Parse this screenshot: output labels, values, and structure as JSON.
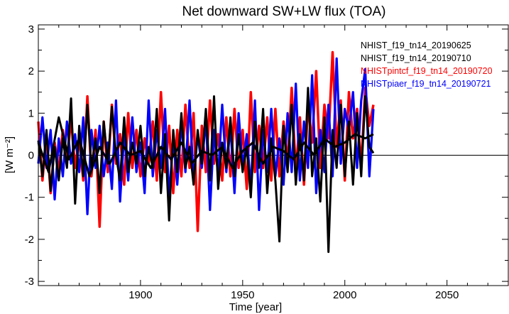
{
  "chart_data": {
    "type": "line",
    "title": "Net downward SW+LW flux (TOA)",
    "xlabel": "Time [year]",
    "ylabel": "[W m⁻²]",
    "xlim": [
      1850,
      2080
    ],
    "ylim": [
      -3.1,
      3.1
    ],
    "xticks": [
      1900,
      1950,
      2000,
      2050
    ],
    "yticks": [
      -3,
      -2,
      -1,
      0,
      1,
      2,
      3
    ],
    "zero_line": true,
    "legend_position": "top-right",
    "series": [
      {
        "name": "NHIST_f19_tn14_20190625",
        "color": "#000000",
        "x": [
          1850,
          1855,
          1860,
          1865,
          1870,
          1875,
          1880,
          1885,
          1890,
          1895,
          1900,
          1905,
          1910,
          1915,
          1920,
          1925,
          1930,
          1935,
          1940,
          1945,
          1950,
          1955,
          1960,
          1965,
          1970,
          1975,
          1980,
          1985,
          1990,
          1995,
          2000,
          2005,
          2010,
          2014
        ],
        "values": [
          0.3,
          -0.4,
          0.9,
          -0.1,
          0.4,
          -0.5,
          0.2,
          -0.2,
          0.3,
          0.0,
          0.1,
          -0.3,
          0.2,
          -0.1,
          0.3,
          -0.2,
          0.1,
          0.0,
          0.2,
          -0.3,
          0.1,
          0.3,
          -0.2,
          0.2,
          0.1,
          -0.1,
          0.3,
          0.0,
          0.4,
          0.2,
          0.3,
          0.5,
          0.4,
          0.5
        ]
      },
      {
        "name": "NHIST_f19_tn14_20190710",
        "color": "#000000",
        "x": [
          1850,
          1852,
          1854,
          1856,
          1858,
          1860,
          1862,
          1864,
          1866,
          1868,
          1870,
          1872,
          1874,
          1876,
          1878,
          1880,
          1882,
          1884,
          1886,
          1888,
          1890,
          1892,
          1894,
          1896,
          1898,
          1900,
          1902,
          1904,
          1906,
          1908,
          1910,
          1912,
          1914,
          1916,
          1918,
          1920,
          1922,
          1924,
          1926,
          1928,
          1930,
          1932,
          1934,
          1936,
          1938,
          1940,
          1942,
          1944,
          1946,
          1948,
          1950,
          1952,
          1954,
          1956,
          1958,
          1960,
          1962,
          1964,
          1966,
          1968,
          1970,
          1972,
          1974,
          1976,
          1978,
          1980,
          1982,
          1984,
          1986,
          1988,
          1990,
          1992,
          1994,
          1996,
          1998,
          2000,
          2002,
          2004,
          2006,
          2008,
          2010,
          2012,
          2014
        ],
        "values": [
          0.35,
          -0.5,
          0.6,
          -0.85,
          0.2,
          -0.6,
          0.4,
          -0.3,
          1.35,
          -1.15,
          0.7,
          -0.5,
          1.2,
          -0.3,
          0.4,
          -0.9,
          0.8,
          -0.2,
          1.15,
          0.0,
          -0.6,
          0.9,
          -0.4,
          0.3,
          -0.2,
          0.7,
          -0.5,
          0.2,
          -0.3,
          1.1,
          -0.9,
          0.5,
          -1.55,
          0.6,
          -0.4,
          1.0,
          -0.3,
          0.2,
          -0.7,
          0.6,
          -0.2,
          1.1,
          -0.6,
          1.4,
          -0.8,
          0.3,
          -0.3,
          0.9,
          -0.5,
          0.5,
          -0.4,
          0.2,
          -1.0,
          0.8,
          -0.3,
          1.1,
          -0.9,
          0.4,
          -0.6,
          -2.05,
          0.7,
          -0.4,
          1.2,
          -0.7,
          0.5,
          -0.6,
          1.6,
          -0.5,
          0.4,
          -1.1,
          0.9,
          -2.3,
          0.6,
          -0.3,
          1.2,
          -0.5,
          0.8,
          -0.7,
          1.0,
          -0.5,
          1.4,
          0.2,
          0.05
        ]
      },
      {
        "name": "NHISTpintcf_f19_tn14_20190720",
        "color": "#ff0000",
        "x": [
          1850,
          1852,
          1854,
          1856,
          1858,
          1860,
          1862,
          1864,
          1866,
          1868,
          1870,
          1872,
          1874,
          1876,
          1878,
          1880,
          1882,
          1884,
          1886,
          1888,
          1890,
          1892,
          1894,
          1896,
          1898,
          1900,
          1902,
          1904,
          1906,
          1908,
          1910,
          1912,
          1914,
          1916,
          1918,
          1920,
          1922,
          1924,
          1926,
          1928,
          1930,
          1932,
          1934,
          1936,
          1938,
          1940,
          1942,
          1944,
          1946,
          1948,
          1950,
          1952,
          1954,
          1956,
          1958,
          1960,
          1962,
          1964,
          1966,
          1968,
          1970,
          1972,
          1974,
          1976,
          1978,
          1980,
          1982,
          1984,
          1986,
          1988,
          1990,
          1992,
          1994,
          1996,
          1998,
          2000,
          2002,
          2004,
          2006,
          2008,
          2010,
          2012,
          2014
        ],
        "values": [
          0.8,
          -0.6,
          0.5,
          -0.9,
          0.3,
          -0.4,
          0.6,
          -0.2,
          0.9,
          -0.3,
          0.4,
          -0.6,
          1.4,
          -0.5,
          0.6,
          -1.7,
          0.8,
          -0.4,
          1.2,
          -0.2,
          0.5,
          -0.7,
          1.0,
          -0.3,
          0.6,
          -0.5,
          0.4,
          -0.2,
          0.8,
          -0.6,
          1.5,
          -0.4,
          0.7,
          -0.9,
          0.6,
          -0.5,
          1.2,
          -0.3,
          1.0,
          -1.8,
          0.7,
          -0.4,
          1.3,
          -0.2,
          0.5,
          -0.6,
          0.9,
          -0.5,
          1.1,
          -0.3,
          0.6,
          -0.8,
          1.5,
          -0.4,
          0.7,
          -0.3,
          0.9,
          -0.6,
          1.1,
          -0.5,
          0.8,
          -0.2,
          1.6,
          -0.4,
          0.9,
          -0.7,
          1.2,
          0.3,
          2.0,
          -0.3,
          1.2,
          0.4,
          2.45,
          0.2,
          1.3,
          -0.6,
          1.5,
          0.4,
          1.1,
          -0.3,
          1.6,
          0.7,
          1.2
        ]
      },
      {
        "name": "NHISTpiaer_f19_tn14_20190721",
        "color": "#0000ff",
        "x": [
          1850,
          1852,
          1854,
          1856,
          1858,
          1860,
          1862,
          1864,
          1866,
          1868,
          1870,
          1872,
          1874,
          1876,
          1878,
          1880,
          1882,
          1884,
          1886,
          1888,
          1890,
          1892,
          1894,
          1896,
          1898,
          1900,
          1902,
          1904,
          1906,
          1908,
          1910,
          1912,
          1914,
          1916,
          1918,
          1920,
          1922,
          1924,
          1926,
          1928,
          1930,
          1932,
          1934,
          1936,
          1938,
          1940,
          1942,
          1944,
          1946,
          1948,
          1950,
          1952,
          1954,
          1956,
          1958,
          1960,
          1962,
          1964,
          1966,
          1968,
          1970,
          1972,
          1974,
          1976,
          1978,
          1980,
          1982,
          1984,
          1986,
          1988,
          1990,
          1992,
          1994,
          1996,
          1998,
          2000,
          2002,
          2004,
          2006,
          2008,
          2010,
          2012,
          2014
        ],
        "values": [
          -0.2,
          0.9,
          -0.3,
          0.6,
          -1.05,
          0.4,
          -0.5,
          0.8,
          -0.2,
          0.5,
          -0.4,
          0.9,
          -1.4,
          0.6,
          -0.3,
          0.7,
          -0.5,
          0.3,
          -0.8,
          1.3,
          -1.1,
          0.5,
          -0.6,
          0.9,
          -0.4,
          0.3,
          -0.9,
          1.3,
          -0.5,
          0.6,
          -0.3,
          1.1,
          -1.0,
          0.4,
          -0.7,
          0.8,
          -0.4,
          1.3,
          -0.6,
          0.5,
          -0.3,
          0.9,
          -1.3,
          0.6,
          -0.5,
          1.2,
          -0.4,
          0.7,
          -0.9,
          1.0,
          -0.3,
          0.5,
          -0.8,
          1.3,
          -1.3,
          0.6,
          -0.4,
          1.1,
          -0.5,
          0.4,
          -0.7,
          1.0,
          -0.4,
          1.7,
          -0.6,
          0.8,
          -0.3,
          1.9,
          -0.9,
          0.6,
          -0.4,
          1.2,
          -0.5,
          2.3,
          -0.2,
          1.1,
          0.6,
          1.5,
          -0.3,
          1.3,
          2.05,
          -0.5,
          1.1
        ]
      }
    ]
  }
}
